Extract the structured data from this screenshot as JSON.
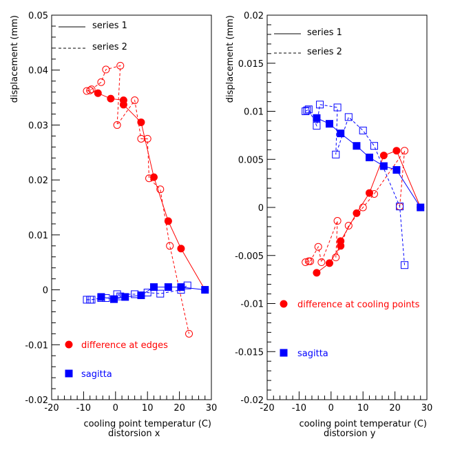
{
  "colors": {
    "axis": "#000000",
    "red": "#ff0000",
    "blue": "#0000ff",
    "background": "#ffffff"
  },
  "chart_data": [
    {
      "type": "scatter",
      "subtitle": "distorsion x",
      "xlabel": "cooling point temperatur (C)",
      "ylabel": "displacement (mm)",
      "xlim": [
        -20,
        30
      ],
      "ylim": [
        -0.02,
        0.05
      ],
      "xticks": [
        -20,
        -10,
        0,
        10,
        20,
        30
      ],
      "xtick_labels": [
        "-20",
        "-10",
        "0",
        "10",
        "20",
        "30"
      ],
      "yticks": [
        -0.02,
        -0.01,
        0,
        0.01,
        0.02,
        0.03,
        0.04,
        0.05
      ],
      "ytick_labels": [
        "-0.02",
        "-0.01",
        "0",
        "0.01",
        "0.02",
        "0.03",
        "0.04",
        "0.05"
      ],
      "legend": [
        {
          "label": "series 1",
          "style": "solid"
        },
        {
          "label": "series 2",
          "style": "dashed"
        }
      ],
      "marker_legend": [
        {
          "label": "difference at edges",
          "color": "red",
          "marker": "circle"
        },
        {
          "label": "sagitta",
          "color": "blue",
          "marker": "square"
        }
      ],
      "series": [
        {
          "color": "red",
          "marker": "circle",
          "filled": true,
          "line": "solid",
          "x": [
            -5.5,
            -1.5,
            2.5,
            2.5,
            8,
            12,
            16.5,
            20.5,
            28
          ],
          "y": [
            0.0358,
            0.0348,
            0.0345,
            0.0337,
            0.0305,
            0.0205,
            0.0125,
            0.0075,
            0
          ]
        },
        {
          "color": "red",
          "marker": "circle",
          "filled": false,
          "line": "dashed",
          "x": [
            -9,
            -8,
            -7.5,
            -4.5,
            -3,
            1.5,
            0.5,
            6,
            8,
            10,
            10.5,
            14,
            17,
            23
          ],
          "y": [
            0.0362,
            0.0363,
            0.0365,
            0.0378,
            0.0401,
            0.0408,
            0.03,
            0.0345,
            0.0275,
            0.0275,
            0.0203,
            0.0183,
            0.008,
            -0.008
          ]
        },
        {
          "color": "blue",
          "marker": "square",
          "filled": true,
          "line": "solid",
          "x": [
            -4.5,
            -0.5,
            3,
            8,
            12,
            16.5,
            20.5,
            28
          ],
          "y": [
            -0.0013,
            -0.0017,
            -0.0013,
            -0.001,
            0.0005,
            0.0005,
            0.0005,
            0
          ]
        },
        {
          "color": "blue",
          "marker": "square",
          "filled": false,
          "line": "dashed",
          "x": [
            -9,
            -8,
            -7.5,
            -4.5,
            -3,
            1.5,
            0.5,
            6,
            10,
            14,
            20.5,
            22.5
          ],
          "y": [
            -0.0018,
            -0.0018,
            -0.0018,
            -0.0015,
            -0.0015,
            -0.0012,
            -0.0008,
            -0.0008,
            -0.0005,
            -0.0007,
            0.0,
            0.0008
          ]
        }
      ]
    },
    {
      "type": "scatter",
      "subtitle": "distorsion y",
      "xlabel": "cooling point temperatur (C)",
      "ylabel": "displacement (mm)",
      "xlim": [
        -20,
        30
      ],
      "ylim": [
        -0.02,
        0.02
      ],
      "xticks": [
        -20,
        -10,
        0,
        10,
        20,
        30
      ],
      "xtick_labels": [
        "-20",
        "-10",
        "0",
        "10",
        "20",
        "30"
      ],
      "yticks": [
        -0.02,
        -0.015,
        -0.01,
        -0.005,
        0,
        0.005,
        0.01,
        0.015,
        0.02
      ],
      "ytick_labels": [
        "-0.02",
        "-0.015",
        "-0.01",
        "-0.005",
        "0",
        "0.005",
        "0.01",
        "0.015",
        "0.02"
      ],
      "legend": [
        {
          "label": "series 1",
          "style": "solid"
        },
        {
          "label": "series 2",
          "style": "dashed"
        }
      ],
      "marker_legend": [
        {
          "label": "difference at cooling points",
          "color": "red",
          "marker": "circle"
        },
        {
          "label": "sagitta",
          "color": "blue",
          "marker": "square"
        }
      ],
      "series": [
        {
          "color": "red",
          "marker": "circle",
          "filled": true,
          "line": "solid",
          "x": [
            -4.5,
            -0.5,
            3,
            3,
            8,
            12,
            16.5,
            20.5,
            28
          ],
          "y": [
            -0.0068,
            -0.0058,
            -0.004,
            -0.0035,
            -0.0006,
            0.0015,
            0.0054,
            0.0059,
            0
          ]
        },
        {
          "color": "red",
          "marker": "circle",
          "filled": false,
          "line": "dashed",
          "x": [
            -8,
            -7,
            -6.5,
            -4,
            -3,
            2,
            1.5,
            5.5,
            10,
            13.5,
            23,
            21.5
          ],
          "y": [
            -0.0057,
            -0.0056,
            -0.0056,
            -0.0041,
            -0.0057,
            -0.0014,
            -0.0052,
            -0.0019,
            0.0,
            0.0014,
            0.0059,
            0.0001
          ]
        },
        {
          "color": "blue",
          "marker": "square",
          "filled": true,
          "line": "solid",
          "x": [
            -4.5,
            -0.5,
            3,
            8,
            12,
            16.5,
            20.5,
            28
          ],
          "y": [
            0.0093,
            0.0087,
            0.0077,
            0.0064,
            0.0052,
            0.0043,
            0.0039,
            0
          ]
        },
        {
          "color": "blue",
          "marker": "square",
          "filled": false,
          "line": "dashed",
          "x": [
            -8,
            -7.5,
            -7,
            -4.5,
            -3.5,
            2,
            1.5,
            5.5,
            10,
            13.5,
            21.5,
            23
          ],
          "y": [
            0.01,
            0.0101,
            0.0102,
            0.0085,
            0.0107,
            0.0104,
            0.0055,
            0.0094,
            0.008,
            0.0064,
            0.0001,
            -0.006
          ]
        }
      ]
    }
  ]
}
